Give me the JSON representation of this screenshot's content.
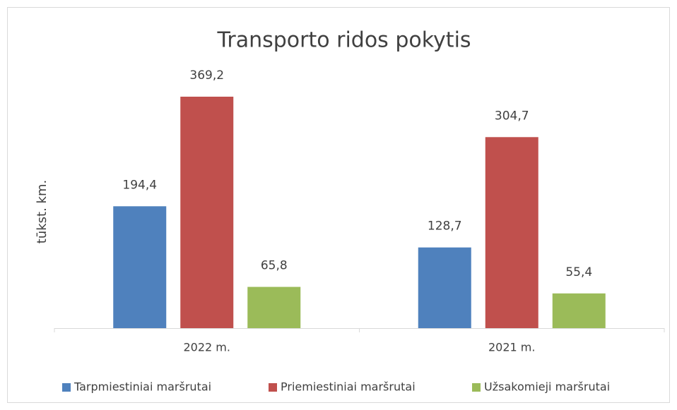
{
  "chart_data": {
    "type": "bar",
    "title": "Transporto ridos pokytis",
    "y_label": "tūkst. km.",
    "categories": [
      "2022 m.",
      "2021 m."
    ],
    "series": [
      {
        "name": "Tarpmiestiniai maršrutai",
        "color": "#4f81bd",
        "values": [
          194.4,
          128.7
        ],
        "value_labels": [
          "194,4",
          "128,7"
        ]
      },
      {
        "name": "Priemiestiniai maršrutai",
        "color": "#c0504d",
        "values": [
          369.2,
          304.7
        ],
        "value_labels": [
          "369,2",
          "304,7"
        ]
      },
      {
        "name": "Užsakomieji maršrutai",
        "color": "#9bbb59",
        "values": [
          65.8,
          55.4
        ],
        "value_labels": [
          "65,8",
          "55,4"
        ]
      }
    ]
  }
}
